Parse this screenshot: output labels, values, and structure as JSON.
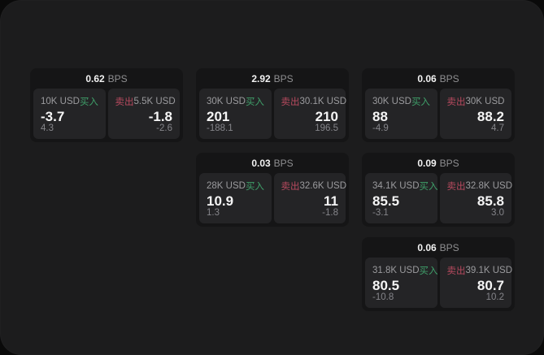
{
  "theme": {
    "outer_bg": "#0a0a0a",
    "container_bg": "#1c1c1d",
    "card_bg": "#151516",
    "panel_bg": "#242426",
    "buy_color": "#3fa06a",
    "sell_color": "#b84a5f"
  },
  "labels": {
    "bps": "BPS",
    "buy": "买入",
    "sell": "卖出"
  },
  "cards": [
    {
      "bps": "0.62",
      "buy": {
        "amount": "10K USD",
        "price": "-3.7",
        "delta": "4.3"
      },
      "sell": {
        "amount": "5.5K USD",
        "price": "-1.8",
        "delta": "-2.6"
      }
    },
    {
      "bps": "2.92",
      "buy": {
        "amount": "30K USD",
        "price": "201",
        "delta": "-188.1"
      },
      "sell": {
        "amount": "30.1K USD",
        "price": "210",
        "delta": "196.5"
      }
    },
    {
      "bps": "0.06",
      "buy": {
        "amount": "30K USD",
        "price": "88",
        "delta": "-4.9"
      },
      "sell": {
        "amount": "30K USD",
        "price": "88.2",
        "delta": "4.7"
      }
    },
    {
      "bps": "0.03",
      "buy": {
        "amount": "28K USD",
        "price": "10.9",
        "delta": "1.3"
      },
      "sell": {
        "amount": "32.6K USD",
        "price": "11",
        "delta": "-1.8"
      }
    },
    {
      "bps": "0.09",
      "buy": {
        "amount": "34.1K USD",
        "price": "85.5",
        "delta": "-3.1"
      },
      "sell": {
        "amount": "32.8K USD",
        "price": "85.8",
        "delta": "3.0"
      }
    },
    {
      "bps": "0.06",
      "buy": {
        "amount": "31.8K USD",
        "price": "80.5",
        "delta": "-10.8"
      },
      "sell": {
        "amount": "39.1K USD",
        "price": "80.7",
        "delta": "10.2"
      }
    }
  ]
}
